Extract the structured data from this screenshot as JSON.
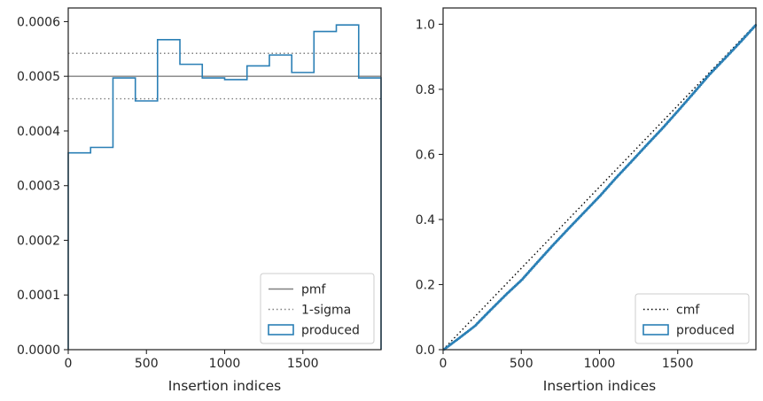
{
  "chart_data": [
    {
      "type": "histogram",
      "xlabel": "Insertion indices",
      "ylabel": "",
      "xlim": [
        0,
        2000
      ],
      "ylim": [
        0,
        0.000625
      ],
      "xticks": [
        0,
        500,
        1000,
        1500
      ],
      "xtick_labels": [
        "0",
        "500",
        "1000",
        "1500"
      ],
      "yticks": [
        0,
        0.0001,
        0.0002,
        0.0003,
        0.0004,
        0.0005,
        0.0006
      ],
      "ytick_labels": [
        "0.0000",
        "0.0001",
        "0.0002",
        "0.0003",
        "0.0004",
        "0.0005",
        "0.0006"
      ],
      "bin_edges": [
        0,
        143,
        286,
        429,
        571,
        714,
        857,
        1000,
        1143,
        1286,
        1429,
        1571,
        1714,
        1857,
        2000
      ],
      "series": [
        {
          "name": "produced",
          "style": "step",
          "color": "#2a7fb5",
          "values": [
            0.00036,
            0.00037,
            0.000497,
            0.000455,
            0.000567,
            0.000522,
            0.000497,
            0.000494,
            0.000519,
            0.000539,
            0.000507,
            0.000582,
            0.000594,
            0.000497
          ]
        }
      ],
      "reference_lines": [
        {
          "name": "pmf",
          "y": 0.0005,
          "style": "solid",
          "color": "#808080"
        },
        {
          "name": "1-sigma",
          "y": 0.000542,
          "style": "dotted",
          "color": "#808080"
        },
        {
          "name": "",
          "y": 0.000459,
          "style": "dotted",
          "color": "#808080"
        }
      ],
      "legend": {
        "placement": "lower-right",
        "entries": [
          "pmf",
          "1-sigma",
          "produced"
        ]
      }
    },
    {
      "type": "line",
      "xlabel": "Insertion indices",
      "ylabel": "",
      "xlim": [
        0,
        2000
      ],
      "ylim": [
        0,
        1.05
      ],
      "xticks": [
        0,
        500,
        1000,
        1500
      ],
      "xtick_labels": [
        "0",
        "500",
        "1000",
        "1500"
      ],
      "yticks": [
        0,
        0.2,
        0.4,
        0.6,
        0.8,
        1.0
      ],
      "ytick_labels": [
        "0.0",
        "0.2",
        "0.4",
        "0.6",
        "0.8",
        "1.0"
      ],
      "series": [
        {
          "name": "cmf",
          "style": "dotted",
          "color": "#000000",
          "x": [
            0,
            2000
          ],
          "values": [
            0,
            1.0
          ]
        },
        {
          "name": "produced",
          "style": "step",
          "color": "#2a7fb5",
          "x": [
            0,
            100,
            200,
            300,
            400,
            500,
            600,
            700,
            800,
            900,
            1000,
            1100,
            1200,
            1300,
            1400,
            1500,
            1600,
            1700,
            1800,
            1900,
            2000
          ],
          "values": [
            0,
            0.036,
            0.073,
            0.122,
            0.17,
            0.215,
            0.269,
            0.322,
            0.373,
            0.423,
            0.473,
            0.527,
            0.578,
            0.63,
            0.681,
            0.735,
            0.79,
            0.846,
            0.896,
            0.947,
            1.0
          ]
        }
      ],
      "legend": {
        "placement": "lower-right",
        "entries": [
          "cmf",
          "produced"
        ]
      }
    }
  ]
}
